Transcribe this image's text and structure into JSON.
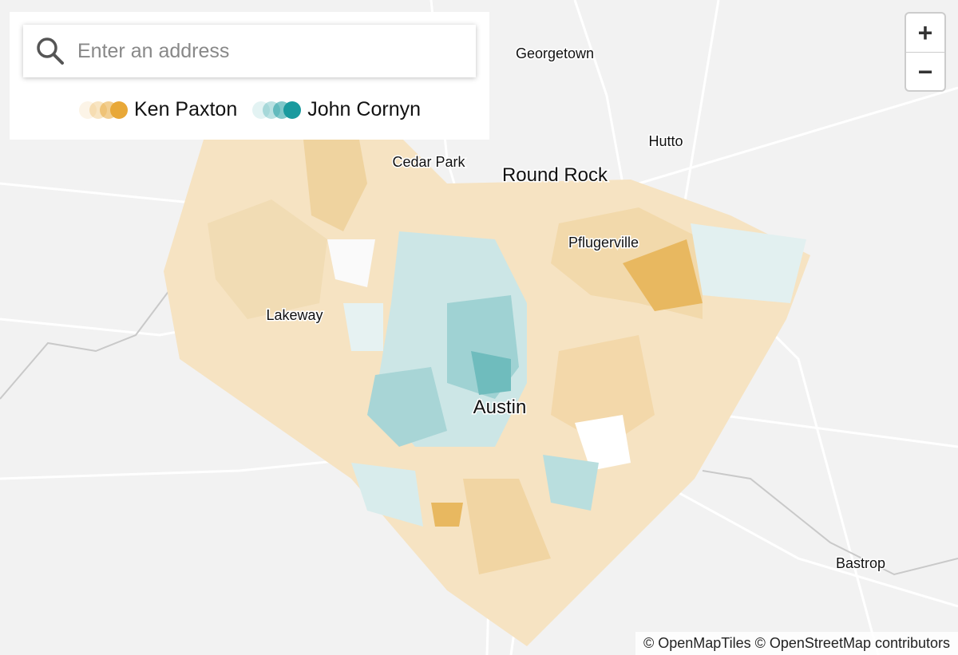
{
  "search": {
    "placeholder": "Enter an address"
  },
  "legend": [
    {
      "name": "Ken Paxton",
      "color": "#e8a838"
    },
    {
      "name": "John Cornyn",
      "color": "#1a9a9e"
    }
  ],
  "places": [
    "Georgetown",
    "Hutto",
    "Cedar Park",
    "Round Rock",
    "Pflugerville",
    "Lakeway",
    "Austin",
    "Bastrop"
  ],
  "zoom": {
    "in": "+",
    "out": "−"
  },
  "attribution": "© OpenMapTiles © OpenStreetMap contributors"
}
